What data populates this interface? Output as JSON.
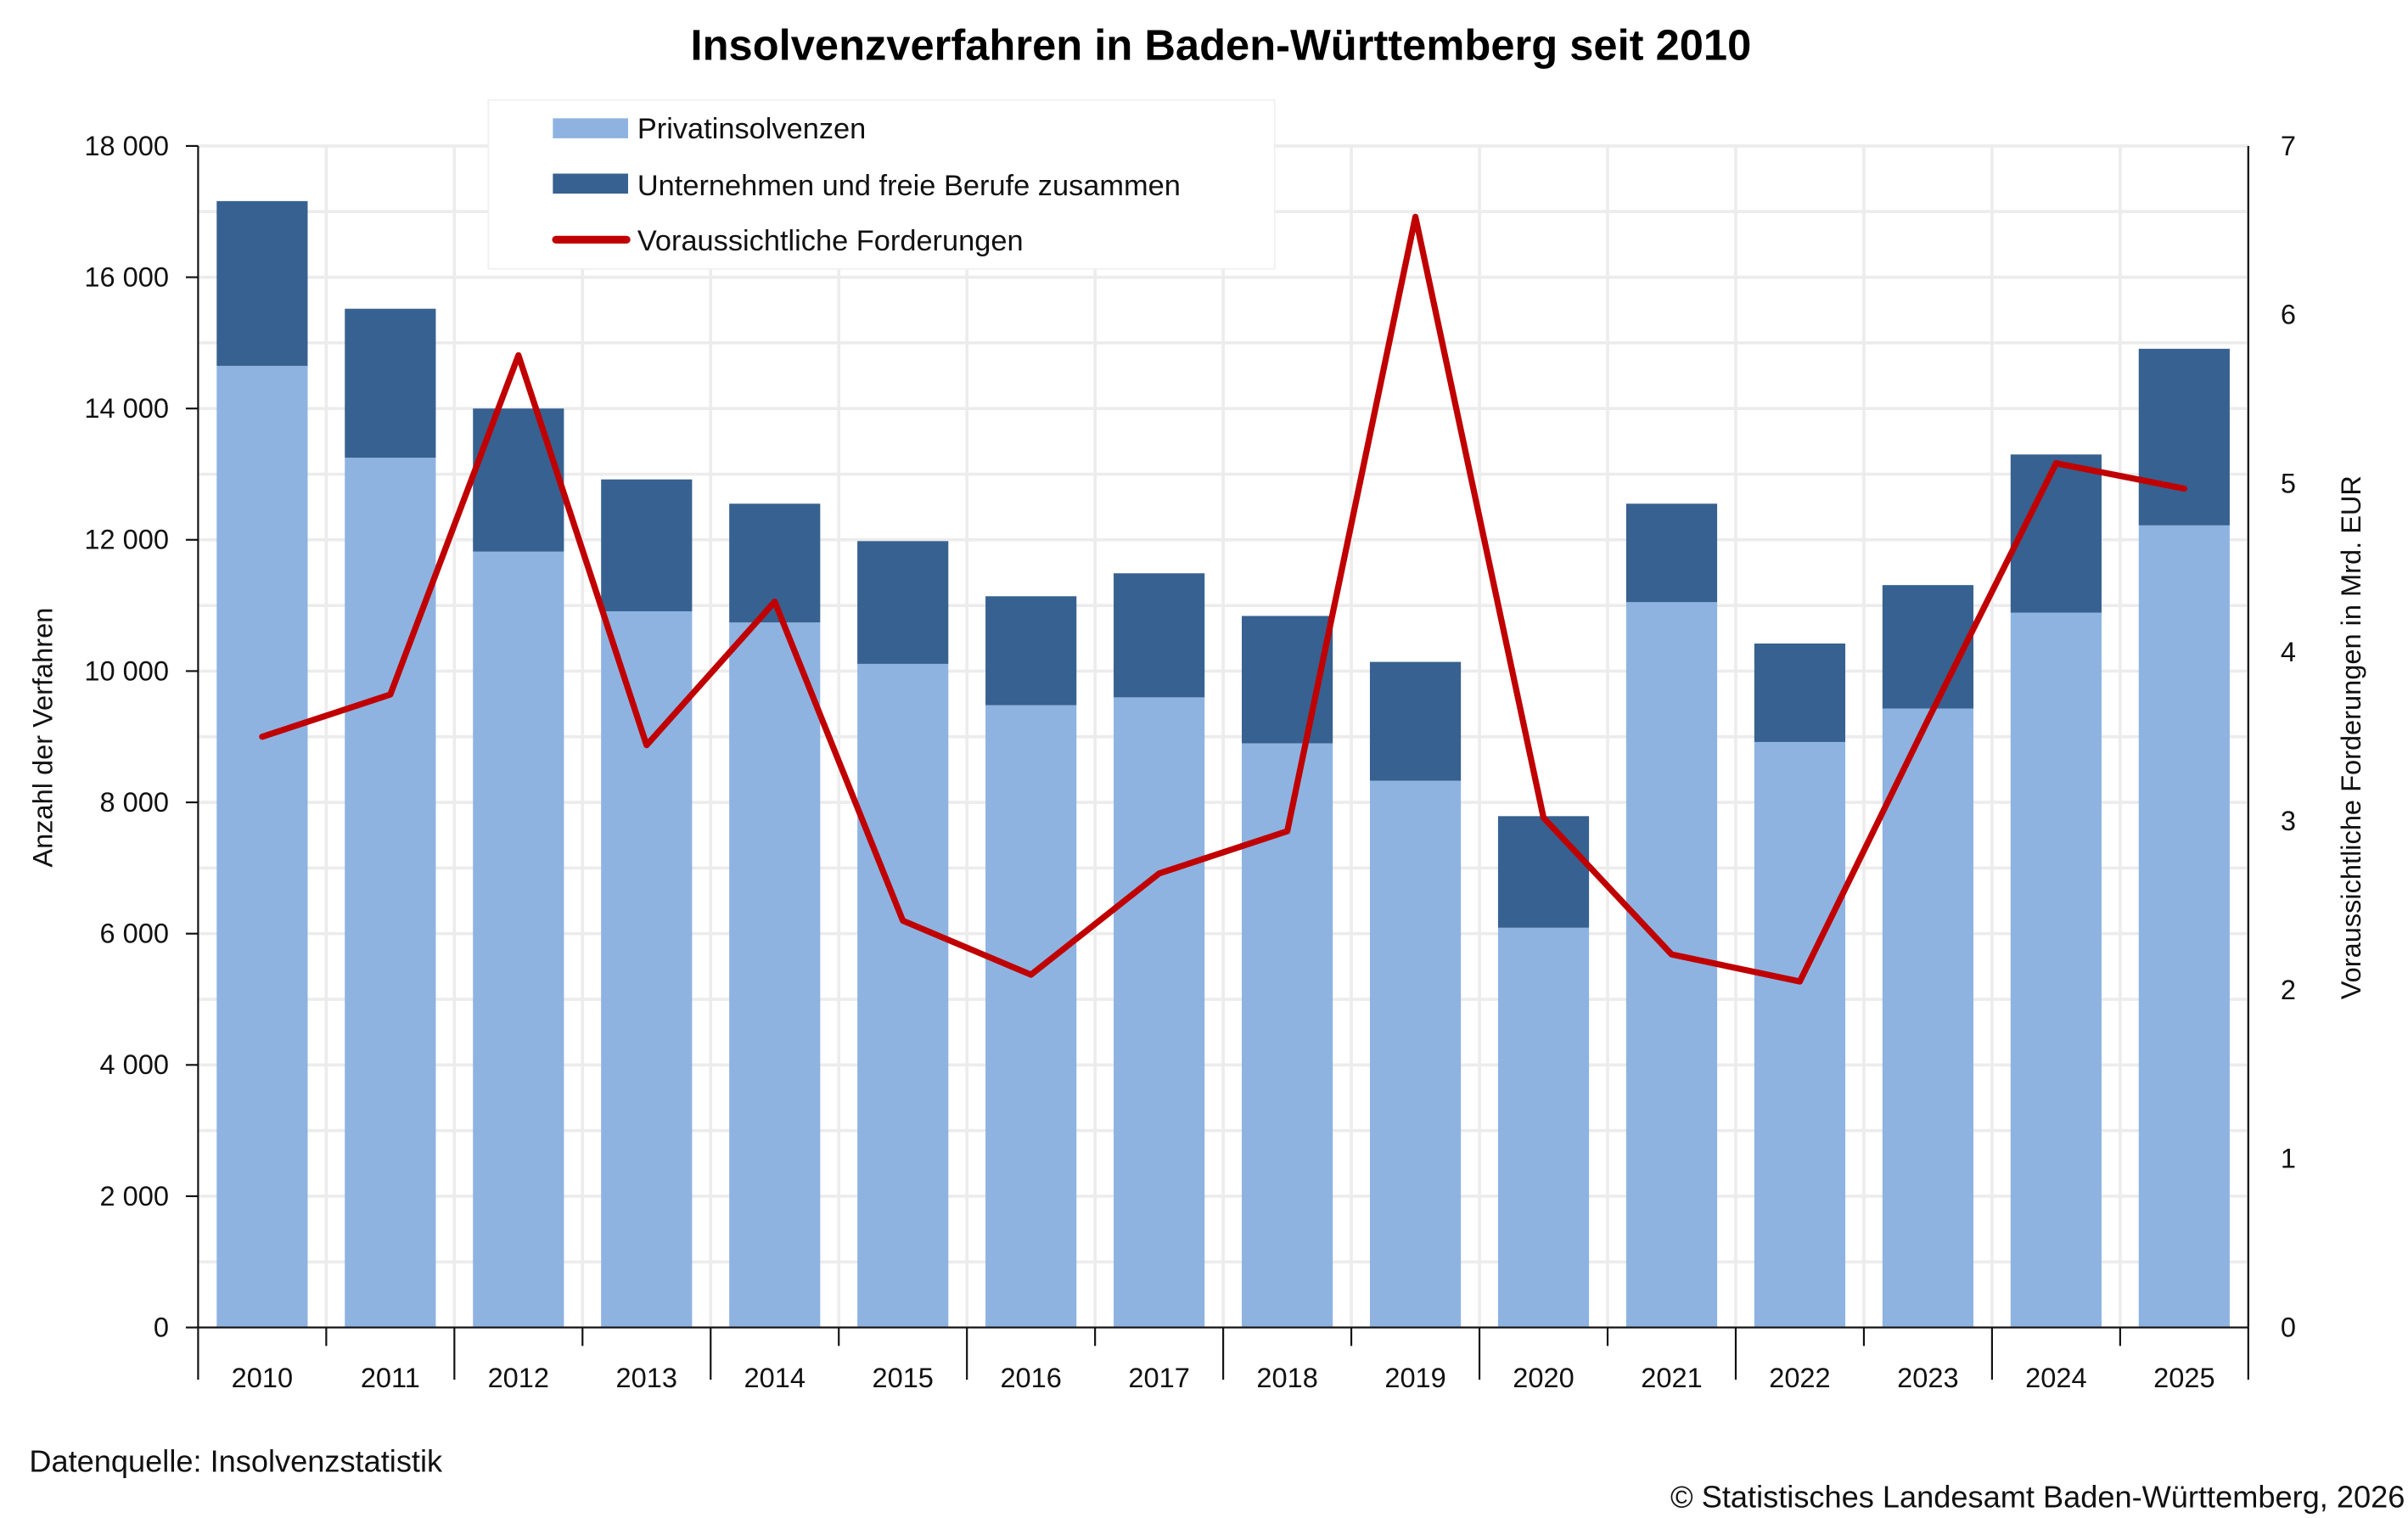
{
  "chart_data": {
    "type": "bar",
    "title": "Insolvenzverfahren in Baden-Württemberg seit 2010",
    "categories": [
      "2010",
      "2011",
      "2012",
      "2013",
      "2014",
      "2015",
      "2016",
      "2017",
      "2018",
      "2019",
      "2020",
      "2021",
      "2022",
      "2023",
      "2024",
      "2025"
    ],
    "series": [
      {
        "name": "Privatinsolvenzen",
        "kind": "stacked-bar",
        "axis": "left",
        "color": "#8eb3e1",
        "values": [
          14650,
          13250,
          11820,
          10910,
          10740,
          10110,
          9480,
          9600,
          8900,
          8330,
          6090,
          11050,
          8920,
          9430,
          10890,
          12220
        ]
      },
      {
        "name": "Unternehmen und freie Berufe zusammen",
        "kind": "stacked-bar",
        "axis": "left",
        "color": "#376190",
        "values": [
          2510,
          2270,
          2180,
          2010,
          1810,
          1870,
          1660,
          1890,
          1940,
          1810,
          1700,
          1500,
          1500,
          1880,
          2410,
          2690
        ]
      },
      {
        "name": "Voraussichtliche Forderungen",
        "kind": "line",
        "axis": "right",
        "color": "#c00000",
        "values": [
          3.5,
          3.75,
          5.76,
          3.45,
          4.3,
          2.41,
          2.09,
          2.69,
          2.94,
          6.58,
          3.02,
          2.21,
          2.05,
          3.6,
          5.12,
          4.97
        ]
      }
    ],
    "xlabel": "",
    "ylabel": "Anzahl der Verfahren",
    "ylim": [
      0,
      18000
    ],
    "yticks": [
      0,
      2000,
      4000,
      6000,
      8000,
      10000,
      12000,
      14000,
      16000,
      18000
    ],
    "ytick_labels": [
      "0",
      "2 000",
      "4 000",
      "6 000",
      "8 000",
      "10 000",
      "12 000",
      "14 000",
      "16 000",
      "18 000"
    ],
    "y2label": "Voraussichtliche Forderungen in Mrd. EUR",
    "y2lim": [
      0,
      7
    ],
    "y2ticks": [
      0,
      1,
      2,
      3,
      4,
      5,
      6,
      7
    ],
    "y2tick_labels": [
      "0",
      "1",
      "2",
      "3",
      "4",
      "5",
      "6",
      "7"
    ],
    "grid": true,
    "legend_position": "top-left-inside"
  },
  "footer": {
    "source": "Datenquelle: Insolvenzstatistik",
    "copyright": "© Statistisches Landesamt Baden-Württemberg, 2026"
  }
}
